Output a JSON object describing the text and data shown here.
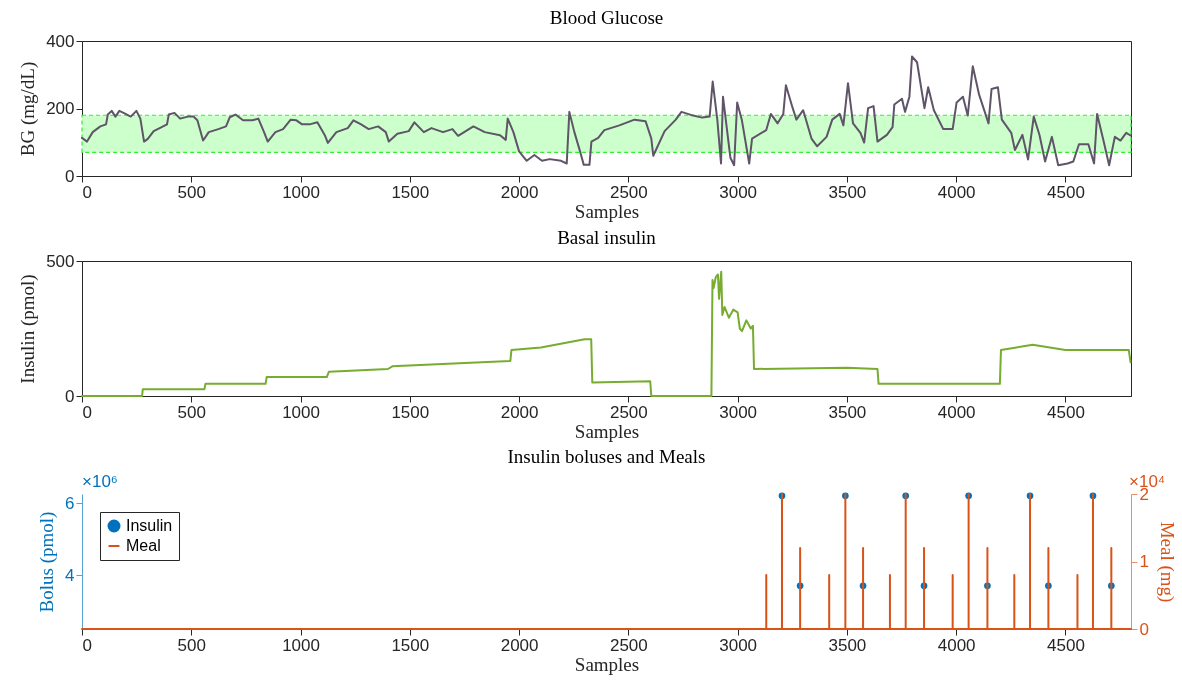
{
  "chart_data": [
    {
      "type": "line",
      "title": "Blood Glucose",
      "xlabel": "Samples",
      "ylabel": "BG (mg/dL)",
      "xlim": [
        0,
        4800
      ],
      "xticks": [
        0,
        500,
        1000,
        1500,
        2000,
        2500,
        3000,
        3500,
        4000,
        4500
      ],
      "ylim": [
        0,
        400
      ],
      "yticks": [
        0,
        200,
        400
      ],
      "color": "#5f5468",
      "bands": [
        {
          "axis": "y",
          "from": 70,
          "to": 180,
          "color": "#ccffcc"
        }
      ],
      "x": [
        0,
        23,
        49,
        84,
        110,
        118,
        136,
        153,
        171,
        197,
        223,
        249,
        267,
        284,
        301,
        328,
        362,
        389,
        397,
        423,
        449,
        484,
        510,
        528,
        554,
        580,
        624,
        659,
        676,
        702,
        737,
        780,
        807,
        833,
        850,
        885,
        920,
        955,
        981,
        1007,
        1042,
        1077,
        1111,
        1125,
        1164,
        1216,
        1242,
        1277,
        1312,
        1355,
        1390,
        1404,
        1443,
        1495,
        1521,
        1564,
        1599,
        1652,
        1695,
        1721,
        1791,
        1843,
        1913,
        1939,
        1948,
        1974,
        2000,
        2035,
        2070,
        2105,
        2140,
        2192,
        2218,
        2230,
        2253,
        2279,
        2296,
        2322,
        2331,
        2362,
        2390,
        2459,
        2528,
        2579,
        2605,
        2614,
        2666,
        2717,
        2743,
        2786,
        2838,
        2872,
        2886,
        2907,
        2924,
        2933,
        2967,
        2984,
        2998,
        3019,
        3053,
        3066,
        3131,
        3152,
        3183,
        3209,
        3221,
        3252,
        3269,
        3300,
        3338,
        3364,
        3407,
        3433,
        3467,
        3484,
        3505,
        3528,
        3562,
        3579,
        3597,
        3622,
        3640,
        3683,
        3709,
        3717,
        3752,
        3766,
        3786,
        3798,
        3821,
        3855,
        3872,
        3898,
        3941,
        3984,
        4002,
        4031,
        4053,
        4076,
        4105,
        4148,
        4162,
        4191,
        4209,
        4252,
        4269,
        4303,
        4329,
        4355,
        4381,
        4407,
        4438,
        4467,
        4510,
        4536,
        4562,
        4605,
        4631,
        4645,
        4674,
        4700,
        4726,
        4752,
        4778,
        4798
      ],
      "values": [
        113,
        102,
        130,
        147,
        153,
        182,
        193,
        176,
        193,
        185,
        176,
        193,
        170,
        102,
        110,
        133,
        144,
        153,
        182,
        187,
        170,
        176,
        176,
        165,
        105,
        130,
        139,
        147,
        174,
        182,
        165,
        165,
        170,
        130,
        102,
        130,
        139,
        167,
        165,
        153,
        153,
        159,
        121,
        98,
        130,
        142,
        165,
        153,
        139,
        147,
        130,
        102,
        125,
        133,
        159,
        130,
        142,
        130,
        139,
        119,
        147,
        130,
        121,
        107,
        170,
        130,
        73,
        45,
        62,
        45,
        50,
        45,
        37,
        190,
        130,
        73,
        33,
        33,
        102,
        113,
        136,
        150,
        167,
        162,
        111,
        60,
        133,
        167,
        190,
        181,
        173,
        176,
        280,
        167,
        37,
        235,
        54,
        32,
        218,
        167,
        37,
        111,
        136,
        184,
        156,
        184,
        269,
        201,
        167,
        195,
        111,
        88,
        116,
        167,
        184,
        150,
        275,
        156,
        128,
        99,
        201,
        207,
        102,
        122,
        145,
        212,
        229,
        190,
        235,
        354,
        337,
        201,
        263,
        195,
        139,
        139,
        218,
        235,
        179,
        325,
        241,
        156,
        258,
        263,
        167,
        128,
        77,
        122,
        49,
        176,
        122,
        43,
        116,
        32,
        37,
        43,
        94,
        94,
        37,
        184,
        105,
        32,
        116,
        105,
        128,
        120
      ]
    },
    {
      "type": "line",
      "title": "Basal insulin",
      "xlabel": "Samples",
      "ylabel": "Insulin (pmol)",
      "xlim": [
        0,
        4800
      ],
      "xticks": [
        0,
        500,
        1000,
        1500,
        2000,
        2500,
        3000,
        3500,
        4000,
        4500
      ],
      "ylim": [
        0,
        500
      ],
      "yticks": [
        0,
        500
      ],
      "color": "#77ac30",
      "x": [
        0,
        275,
        278,
        560,
        565,
        840,
        845,
        1120,
        1130,
        1400,
        1420,
        1700,
        1960,
        1965,
        2100,
        2300,
        2330,
        2335,
        2600,
        2605,
        2880,
        2885,
        2890,
        2900,
        2910,
        2915,
        2925,
        2930,
        2940,
        2960,
        2980,
        3000,
        3010,
        3020,
        3040,
        3060,
        3070,
        3075,
        3500,
        3640,
        3645,
        4200,
        4205,
        4350,
        4500,
        4790,
        4798
      ],
      "values": [
        0,
        0,
        25,
        25,
        45,
        45,
        70,
        70,
        90,
        100,
        110,
        120,
        130,
        170,
        180,
        210,
        210,
        50,
        55,
        0,
        0,
        430,
        400,
        440,
        450,
        360,
        460,
        300,
        330,
        290,
        320,
        310,
        250,
        240,
        280,
        250,
        260,
        100,
        105,
        100,
        45,
        45,
        170,
        190,
        170,
        170,
        125
      ]
    },
    {
      "type": "line",
      "title": "Insulin boluses and Meals",
      "xlabel": "Samples",
      "ylabel": "Bolus (pmol)",
      "y2label": "Meal (mg)",
      "xlim": [
        0,
        4800
      ],
      "xticks": [
        0,
        500,
        1000,
        1500,
        2000,
        2500,
        3000,
        3500,
        4000,
        4500
      ],
      "ylim": [
        2.5,
        6.25
      ],
      "yticks": [
        4,
        6
      ],
      "y2lim": [
        0,
        2
      ],
      "y2ticks": [
        0,
        1,
        2
      ],
      "legend": "top left",
      "annotations": [
        "×10⁶",
        "×10⁴"
      ],
      "series": [
        {
          "name": "Insulin",
          "type": "scatter",
          "marker": "circle",
          "color": "#0072bd",
          "x": [
            3203,
            3286,
            3493,
            3574,
            3769,
            3853,
            4057,
            4143,
            4338,
            4422,
            4626,
            4710
          ],
          "values": [
            6.2,
            3.7,
            6.2,
            3.7,
            6.2,
            3.7,
            6.2,
            3.7,
            6.2,
            3.7,
            6.2,
            3.7
          ]
        },
        {
          "name": "Meal",
          "axis": "y2",
          "color": "#d95319",
          "x": [
            0,
            3131,
            3131,
            3131,
            3203,
            3203,
            3203,
            3286,
            3286,
            3286,
            3419,
            3419,
            3419,
            3493,
            3493,
            3493,
            3574,
            3574,
            3574,
            3697,
            3697,
            3697,
            3769,
            3769,
            3769,
            3853,
            3853,
            3853,
            3984,
            3984,
            3984,
            4057,
            4057,
            4057,
            4143,
            4143,
            4143,
            4266,
            4266,
            4266,
            4338,
            4338,
            4338,
            4422,
            4422,
            4422,
            4555,
            4555,
            4555,
            4626,
            4626,
            4626,
            4710,
            4710,
            4710,
            4800
          ],
          "values": [
            0,
            0,
            0.8,
            0,
            0,
            2,
            0,
            0,
            1.2,
            0,
            0,
            0.8,
            0,
            0,
            2,
            0,
            0,
            1.2,
            0,
            0,
            0.8,
            0,
            0,
            2,
            0,
            0,
            1.2,
            0,
            0,
            0.8,
            0,
            0,
            2,
            0,
            0,
            1.2,
            0,
            0,
            0.8,
            0,
            0,
            2,
            0,
            0,
            1.2,
            0,
            0,
            0.8,
            0,
            0,
            2,
            0,
            0,
            1.2,
            0,
            0
          ]
        }
      ]
    }
  ]
}
